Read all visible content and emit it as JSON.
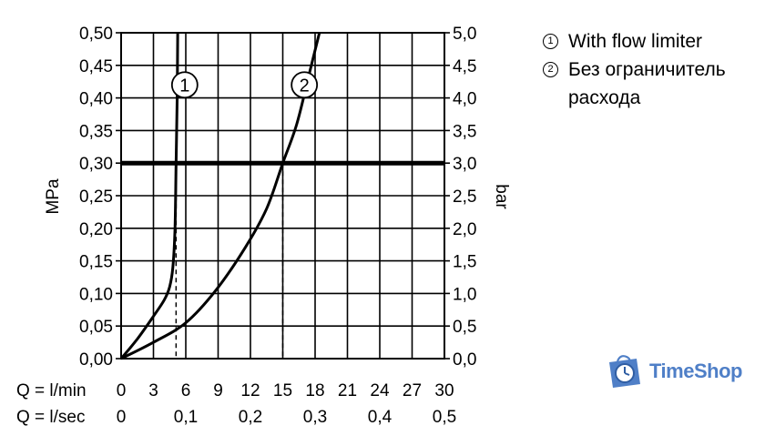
{
  "chart_data": {
    "type": "line",
    "ylabel_left": "MPa",
    "ylabel_right": "bar",
    "x_row1_label": "Q = l/min",
    "x_row2_label": "Q = l/sec",
    "xlim": [
      0,
      30
    ],
    "ylim": [
      0,
      0.5
    ],
    "x_ticks_lmin": [
      "0",
      "3",
      "6",
      "9",
      "12",
      "15",
      "18",
      "21",
      "24",
      "27",
      "30"
    ],
    "x_ticks_lsec": [
      {
        "x": 0,
        "label": "0"
      },
      {
        "x": 6,
        "label": "0,1"
      },
      {
        "x": 12,
        "label": "0,2"
      },
      {
        "x": 18,
        "label": "0,3"
      },
      {
        "x": 24,
        "label": "0,4"
      },
      {
        "x": 30,
        "label": "0,5"
      }
    ],
    "y_ticks_left": [
      "0,00",
      "0,05",
      "0,10",
      "0,15",
      "0,20",
      "0,25",
      "0,30",
      "0,35",
      "0,40",
      "0,45",
      "0,50"
    ],
    "y_ticks_right": [
      "0,0",
      "0,5",
      "1,0",
      "1,5",
      "2,0",
      "2,5",
      "3,0",
      "3,5",
      "4,0",
      "4,5",
      "5,0"
    ],
    "grid": true,
    "reference_line": {
      "y": 0.3
    },
    "series": [
      {
        "name": "1",
        "points": [
          [
            0,
            0
          ],
          [
            1.5,
            0.03
          ],
          [
            3,
            0.065
          ],
          [
            4,
            0.09
          ],
          [
            4.5,
            0.11
          ],
          [
            4.8,
            0.14
          ],
          [
            5,
            0.2
          ],
          [
            5.1,
            0.3
          ],
          [
            5.2,
            0.4
          ],
          [
            5.25,
            0.5
          ]
        ],
        "marker_at": [
          5.9,
          0.42
        ]
      },
      {
        "name": "2",
        "points": [
          [
            0,
            0
          ],
          [
            3,
            0.025
          ],
          [
            6,
            0.055
          ],
          [
            8.8,
            0.105
          ],
          [
            11.5,
            0.17
          ],
          [
            13.5,
            0.23
          ],
          [
            15,
            0.3
          ],
          [
            16.3,
            0.36
          ],
          [
            17.5,
            0.44
          ],
          [
            18.4,
            0.5
          ]
        ],
        "marker_at": [
          17,
          0.42
        ]
      }
    ],
    "drop_lines": [
      {
        "x": 5.1,
        "y": 0.3
      },
      {
        "x": 15,
        "y": 0.3
      }
    ]
  },
  "legend": [
    {
      "marker": "1",
      "text": "With flow limiter"
    },
    {
      "marker": "2",
      "text": "Без ограничитель\nрасхода"
    }
  ],
  "logo": {
    "text": "TimeShop",
    "color": "#4f7fc7"
  }
}
